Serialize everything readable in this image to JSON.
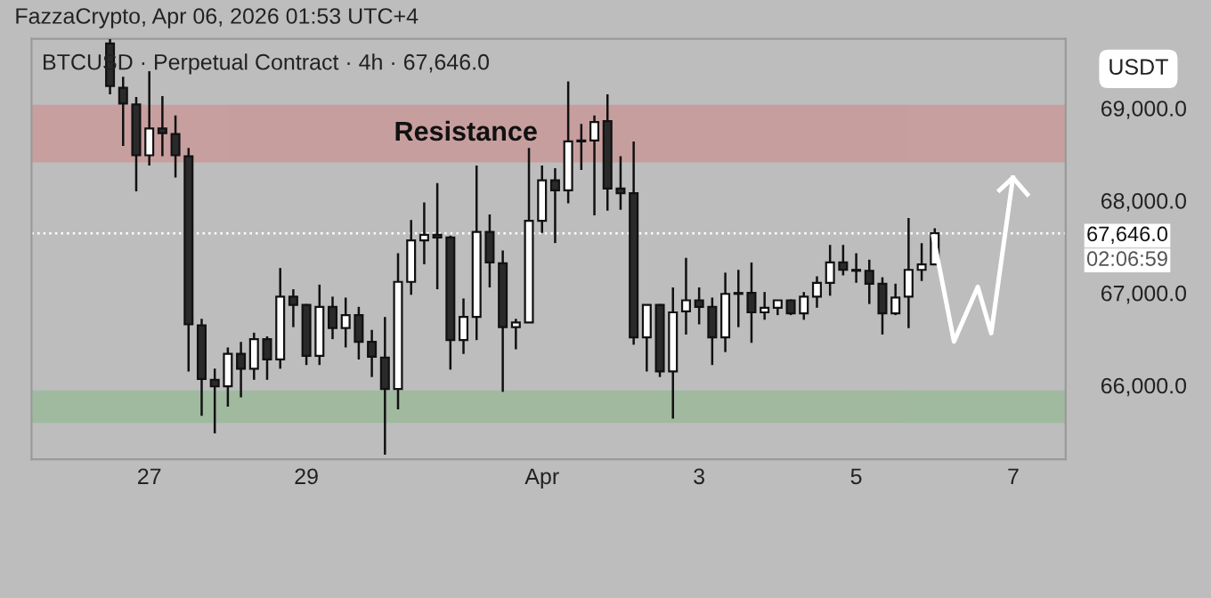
{
  "chart_data": {
    "type": "candlestick",
    "title": "FazzaCrypto, Apr 06, 2026 01:53 UTC+4",
    "subtitle": "BTCUSD · Perpetual Contract · 4h · 67,646.0",
    "ylabel": "USDT",
    "annotations": [
      "02:06:59"
    ],
    "x": [
      "2026-03-26T12:00",
      "2026-03-26T16:00",
      "2026-03-26T20:00",
      "2026-03-27T00:00",
      "2026-03-27T04:00",
      "2026-03-27T08:00",
      "2026-03-27T12:00",
      "2026-03-27T16:00",
      "2026-03-27T20:00",
      "2026-03-28T00:00",
      "2026-03-28T04:00",
      "2026-03-28T08:00",
      "2026-03-28T12:00",
      "2026-03-28T16:00",
      "2026-03-28T20:00",
      "2026-03-29T00:00",
      "2026-03-29T04:00",
      "2026-03-29T08:00",
      "2026-03-29T12:00",
      "2026-03-29T16:00",
      "2026-03-29T20:00",
      "2026-03-30T00:00",
      "2026-03-30T04:00",
      "2026-03-30T08:00",
      "2026-03-30T12:00",
      "2026-03-30T16:00",
      "2026-03-30T20:00",
      "2026-03-31T00:00",
      "2026-03-31T04:00",
      "2026-03-31T08:00",
      "2026-03-31T12:00",
      "2026-03-31T16:00",
      "2026-03-31T20:00",
      "2026-04-01T00:00",
      "2026-04-01T04:00",
      "2026-04-01T08:00",
      "2026-04-01T12:00",
      "2026-04-01T16:00",
      "2026-04-01T20:00",
      "2026-04-02T00:00",
      "2026-04-02T04:00",
      "2026-04-02T08:00",
      "2026-04-02T12:00",
      "2026-04-02T16:00",
      "2026-04-02T20:00",
      "2026-04-03T00:00",
      "2026-04-03T04:00",
      "2026-04-03T08:00",
      "2026-04-03T12:00",
      "2026-04-03T16:00",
      "2026-04-03T20:00",
      "2026-04-04T00:00",
      "2026-04-04T04:00",
      "2026-04-04T08:00",
      "2026-04-04T12:00",
      "2026-04-04T16:00",
      "2026-04-04T20:00",
      "2026-04-05T00:00",
      "2026-04-05T04:00",
      "2026-04-05T08:00",
      "2026-04-05T12:00",
      "2026-04-05T16:00",
      "2026-04-05T20:00",
      "2026-04-06T00:00"
    ],
    "ohlc": [
      [
        69700,
        69750,
        69150,
        69240
      ],
      [
        69220,
        69340,
        68590,
        69050
      ],
      [
        69040,
        69120,
        68100,
        68490
      ],
      [
        68490,
        69400,
        68380,
        68780
      ],
      [
        68780,
        69130,
        68480,
        68730
      ],
      [
        68720,
        68920,
        68250,
        68490
      ],
      [
        68480,
        68570,
        66150,
        66660
      ],
      [
        66650,
        66720,
        65670,
        66070
      ],
      [
        66060,
        66180,
        65480,
        65990
      ],
      [
        65990,
        66410,
        65770,
        66340
      ],
      [
        66340,
        66470,
        65870,
        66180
      ],
      [
        66180,
        66570,
        66060,
        66500
      ],
      [
        66500,
        66530,
        66060,
        66280
      ],
      [
        66280,
        67270,
        66180,
        66960
      ],
      [
        66960,
        67040,
        66630,
        66870
      ],
      [
        66870,
        66880,
        66220,
        66320
      ],
      [
        66320,
        67090,
        66220,
        66850
      ],
      [
        66850,
        66960,
        66500,
        66620
      ],
      [
        66620,
        66950,
        66410,
        66760
      ],
      [
        66760,
        66850,
        66280,
        66470
      ],
      [
        66470,
        66600,
        66090,
        66310
      ],
      [
        66300,
        66740,
        65250,
        65960
      ],
      [
        65960,
        67430,
        65740,
        67120
      ],
      [
        67120,
        67790,
        66980,
        67570
      ],
      [
        67570,
        67980,
        67310,
        67630
      ],
      [
        67630,
        68190,
        67040,
        67600
      ],
      [
        67600,
        67620,
        66170,
        66490
      ],
      [
        66490,
        66940,
        66340,
        66740
      ],
      [
        66740,
        68380,
        66490,
        67660
      ],
      [
        67660,
        67850,
        67060,
        67330
      ],
      [
        67320,
        67460,
        65930,
        66630
      ],
      [
        66630,
        66720,
        66390,
        66680
      ],
      [
        66680,
        68570,
        66680,
        67780
      ],
      [
        67780,
        68380,
        67650,
        68220
      ],
      [
        68220,
        68350,
        67540,
        68110
      ],
      [
        68110,
        69290,
        67970,
        68640
      ],
      [
        68640,
        68830,
        68330,
        68650
      ],
      [
        68650,
        68920,
        67840,
        68850
      ],
      [
        68860,
        69150,
        67890,
        68130
      ],
      [
        68130,
        68480,
        67900,
        68080
      ],
      [
        68080,
        68640,
        66440,
        66520
      ],
      [
        66520,
        66870,
        66150,
        66870
      ],
      [
        66870,
        66880,
        66090,
        66150
      ],
      [
        66150,
        67060,
        65640,
        66790
      ],
      [
        66800,
        67380,
        66550,
        66920
      ],
      [
        66920,
        67060,
        66660,
        66850
      ],
      [
        66850,
        66950,
        66220,
        66520
      ],
      [
        66520,
        67220,
        66360,
        66990
      ],
      [
        66990,
        67250,
        66630,
        67000
      ],
      [
        67000,
        67330,
        66460,
        66790
      ],
      [
        66790,
        67010,
        66710,
        66840
      ],
      [
        66840,
        66920,
        66760,
        66920
      ],
      [
        66920,
        66930,
        66760,
        66780
      ],
      [
        66780,
        67010,
        66710,
        66960
      ],
      [
        66960,
        67180,
        66840,
        67110
      ],
      [
        67110,
        67520,
        66970,
        67330
      ],
      [
        67330,
        67520,
        67190,
        67250
      ],
      [
        67250,
        67430,
        67110,
        67240
      ],
      [
        67240,
        67360,
        66880,
        67100
      ],
      [
        67100,
        67170,
        66550,
        66780
      ],
      [
        66780,
        67100,
        66760,
        66950
      ],
      [
        66960,
        67810,
        66620,
        67250
      ],
      [
        67250,
        67540,
        67130,
        67310
      ],
      [
        67310,
        67700,
        67310,
        67646
      ]
    ],
    "colors": [
      "#2a2a2a",
      "#2a2a2a",
      "#2a2a2a",
      "#ffffff",
      "#2a2a2a",
      "#2a2a2a",
      "#2a2a2a",
      "#2a2a2a",
      "#2a2a2a",
      "#ffffff",
      "#2a2a2a",
      "#ffffff",
      "#2a2a2a",
      "#ffffff",
      "#2a2a2a",
      "#2a2a2a",
      "#ffffff",
      "#2a2a2a",
      "#ffffff",
      "#2a2a2a",
      "#2a2a2a",
      "#2a2a2a",
      "#ffffff",
      "#ffffff",
      "#ffffff",
      "#2a2a2a",
      "#2a2a2a",
      "#ffffff",
      "#ffffff",
      "#2a2a2a",
      "#2a2a2a",
      "#ffffff",
      "#ffffff",
      "#ffffff",
      "#2a2a2a",
      "#ffffff",
      "#ffffff",
      "#ffffff",
      "#2a2a2a",
      "#2a2a2a",
      "#2a2a2a",
      "#ffffff",
      "#2a2a2a",
      "#ffffff",
      "#ffffff",
      "#2a2a2a",
      "#2a2a2a",
      "#ffffff",
      "#ffffff",
      "#2a2a2a",
      "#ffffff",
      "#ffffff",
      "#2a2a2a",
      "#ffffff",
      "#ffffff",
      "#ffffff",
      "#2a2a2a",
      "#2a2a2a",
      "#2a2a2a",
      "#2a2a2a",
      "#ffffff",
      "#ffffff",
      "#ffffff",
      "#ffffff"
    ],
    "xlim": [
      "2026-03-25T12:00",
      "2026-04-07T16:00"
    ],
    "xticks": [
      {
        "value": "2026-03-27",
        "label": "27"
      },
      {
        "value": "2026-03-29",
        "label": "29"
      },
      {
        "value": "2026-04-01",
        "label": "Apr"
      },
      {
        "value": "2026-04-03",
        "label": "3"
      },
      {
        "value": "2026-04-05",
        "label": "5"
      },
      {
        "value": "2026-04-07",
        "label": "7"
      }
    ],
    "ylim": [
      65200,
      69750
    ],
    "yticks": [
      {
        "value": 66000,
        "label": "66,000.0"
      },
      {
        "value": 67000,
        "label": "67,000.0"
      },
      {
        "value": 68000,
        "label": "68,000.0"
      },
      {
        "value": 69000,
        "label": "69,000.0"
      }
    ],
    "ref_lines": [
      {
        "axis": "y",
        "value": 67646,
        "label": "67,646.0",
        "color": "#ffffff",
        "line_style": "dotted"
      }
    ],
    "bands": [
      {
        "axis": "y",
        "from": 68430,
        "to": 69020,
        "label": "Resistance",
        "color": "#e05a5a"
      },
      {
        "axis": "y",
        "from": 65610,
        "to": 65930,
        "label": null,
        "color": "#5fb35c"
      }
    ],
    "grid": false
  }
}
